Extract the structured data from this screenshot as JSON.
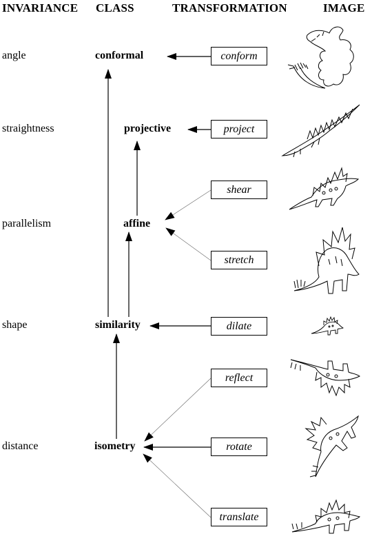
{
  "headers": {
    "invariance": "INVARIANCE",
    "class": "CLASS",
    "transformation": "TRANSFORMATION",
    "image": "IMAGE"
  },
  "invariances": [
    "angle",
    "straightness",
    "parallelism",
    "shape",
    "distance"
  ],
  "classes": {
    "conformal": "conformal",
    "projective": "projective",
    "affine": "affine",
    "similarity": "similarity",
    "isometry": "isometry"
  },
  "transformations": {
    "conform": "conform",
    "project": "project",
    "shear": "shear",
    "stretch": "stretch",
    "dilate": "dilate",
    "reflect": "reflect",
    "rotate": "rotate",
    "translate": "translate"
  },
  "images": [
    "conformal-dinosaur-icon",
    "projective-dinosaur-icon",
    "sheared-dinosaur-icon",
    "stretched-dinosaur-icon",
    "dilated-dinosaur-icon",
    "reflected-dinosaur-icon",
    "rotated-dinosaur-icon",
    "translated-dinosaur-icon"
  ]
}
